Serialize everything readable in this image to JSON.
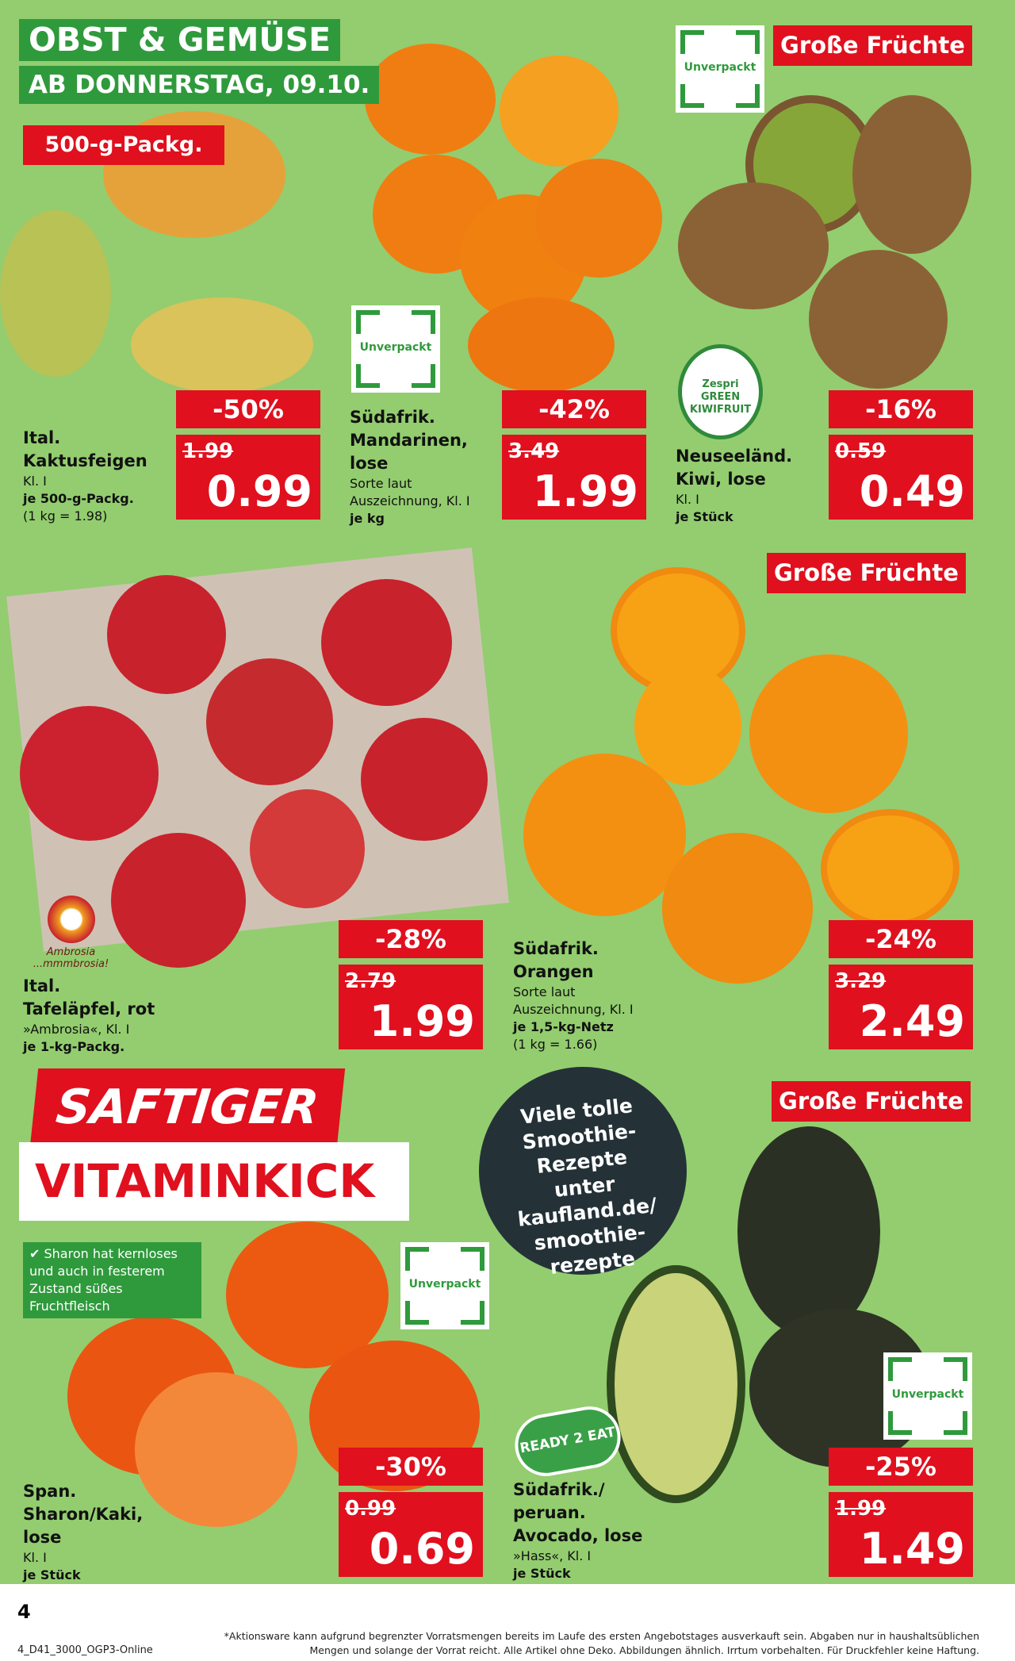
{
  "header": {
    "title": "OBST & GEMÜSE",
    "date": "AB DONNERSTAG, 09.10."
  },
  "badges": {
    "pack": "500-g-Packg.",
    "big_fruit": "Große Früchte",
    "unverpackt": "Unverpackt"
  },
  "products": [
    {
      "lines": [
        "Ital.",
        "Kaktusfeigen"
      ],
      "details": [
        "Kl. I"
      ],
      "unit": "je 500-g-Packg.",
      "base": "(1 kg = 1.98)",
      "discount": "-50%",
      "old": "1.99",
      "price": "0.99"
    },
    {
      "lines": [
        "Südafrik.",
        "Mandarinen,",
        "lose"
      ],
      "details": [
        "Sorte laut",
        "Auszeichnung, Kl. I"
      ],
      "unit": "je kg",
      "base": "",
      "discount": "-42%",
      "old": "3.49",
      "price": "1.99"
    },
    {
      "lines": [
        "Neuseeländ.",
        "Kiwi, lose"
      ],
      "details": [
        "Kl. I"
      ],
      "unit": "je Stück",
      "base": "",
      "discount": "-16%",
      "old": "0.59",
      "price": "0.49"
    },
    {
      "lines": [
        "Ital.",
        "Tafeläpfel, rot"
      ],
      "details": [
        "»Ambrosia«, Kl. I"
      ],
      "unit": "je 1-kg-Packg.",
      "base": "",
      "discount": "-28%",
      "old": "2.79",
      "price": "1.99"
    },
    {
      "lines": [
        "Südafrik.",
        "Orangen"
      ],
      "details": [
        "Sorte laut",
        "Auszeichnung, Kl. I"
      ],
      "unit": "je 1,5-kg-Netz",
      "base": "(1 kg = 1.66)",
      "discount": "-24%",
      "old": "3.29",
      "price": "2.49"
    },
    {
      "lines": [
        "Span.",
        "Sharon/Kaki,",
        "lose"
      ],
      "details": [
        "Kl. I"
      ],
      "unit": "je Stück",
      "base": "",
      "discount": "-30%",
      "old": "0.99",
      "price": "0.69"
    },
    {
      "lines": [
        "Südafrik./",
        "peruan.",
        "Avocado, lose"
      ],
      "details": [
        "»Hass«, Kl. I"
      ],
      "unit": "je Stück",
      "base": "",
      "discount": "-25%",
      "old": "1.99",
      "price": "1.49"
    }
  ],
  "logos": {
    "zespri": "Zespri GREEN KIWIFRUIT",
    "ambrosia": "Ambrosia ...mmmbrosia!",
    "ready2eat": "READY 2 EAT"
  },
  "promo": {
    "line1": "SAFTIGER",
    "line2": "VITAMINKICK",
    "note": "✔ Sharon hat kernloses und auch in festerem Zustand süßes Fruchtfleisch",
    "circle": "Viele tolle Smoothie-Rezepte unter kaufland.de/ smoothie-rezepte"
  },
  "footer": {
    "page": "4",
    "code": "4_D41_3000_OGP3-Online",
    "disclaimer1": "*Aktionsware kann aufgrund begrenzter Vorratsmengen bereits im Laufe des ersten Angebotstages ausverkauft sein. Abgaben nur in haushaltsüblichen",
    "disclaimer2": "Mengen und solange der Vorrat reicht. Alle Artikel ohne Deko. Abbildungen ähnlich. Irrtum vorbehalten. Für Druckfehler keine Haftung."
  },
  "colors": {
    "background": "#93cd6f",
    "red": "#e0101e",
    "green": "#2f9a3c"
  }
}
